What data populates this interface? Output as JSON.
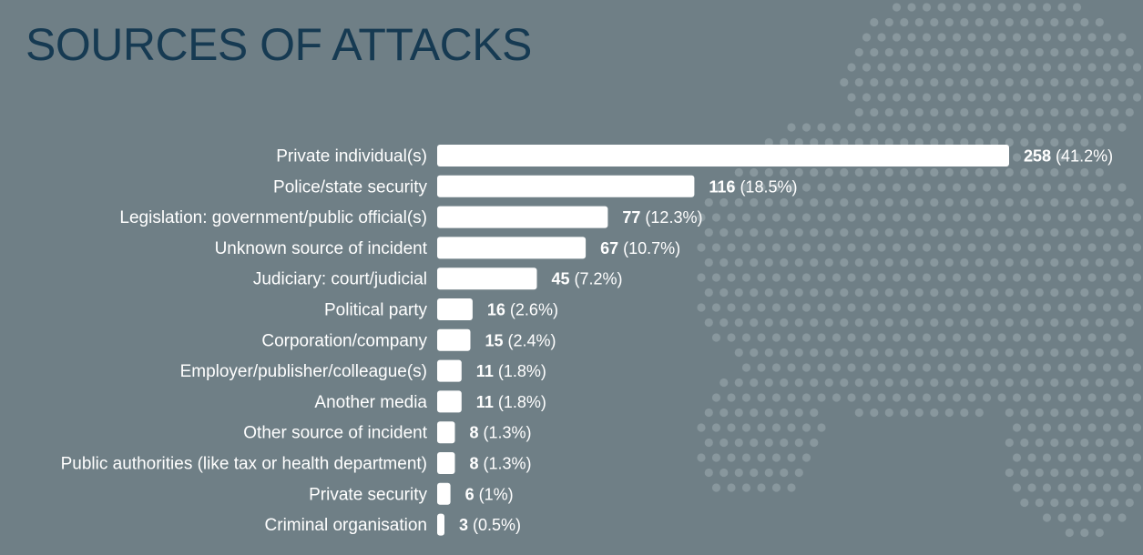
{
  "page": {
    "title": "SOURCES OF ATTACKS"
  },
  "colors": {
    "background": "#6f7f86",
    "title": "#163a52",
    "bars": "#ffffff",
    "labels": "#ffffff",
    "dots": "#8d9ba1"
  },
  "chart_data": {
    "type": "bar",
    "orientation": "horizontal",
    "title": "SOURCES OF ATTACKS",
    "xlabel": "",
    "ylabel": "",
    "xlim": [
      0,
      258
    ],
    "grid": false,
    "legend": "none",
    "categories": [
      "Private individual(s)",
      "Police/state security",
      "Legislation: government/public official(s)",
      "Unknown source of incident",
      "Judiciary: court/judicial",
      "Political party",
      "Corporation/company",
      "Employer/publisher/colleague(s)",
      "Another media",
      "Other source of incident",
      "Public authorities (like tax or health department)",
      "Private security",
      "Criminal organisation"
    ],
    "values": [
      258,
      116,
      77,
      67,
      45,
      16,
      15,
      11,
      11,
      8,
      8,
      6,
      3
    ],
    "percent_labels": [
      "(41.2%)",
      "(18.5%)",
      "(12.3%)",
      "(10.7%)",
      "(7.2%)",
      "(2.6%)",
      "(2.4%)",
      "(1.8%)",
      "(1.8%)",
      "(1.3%)",
      "(1.3%)",
      "(1%)",
      "(0.5%)"
    ]
  }
}
